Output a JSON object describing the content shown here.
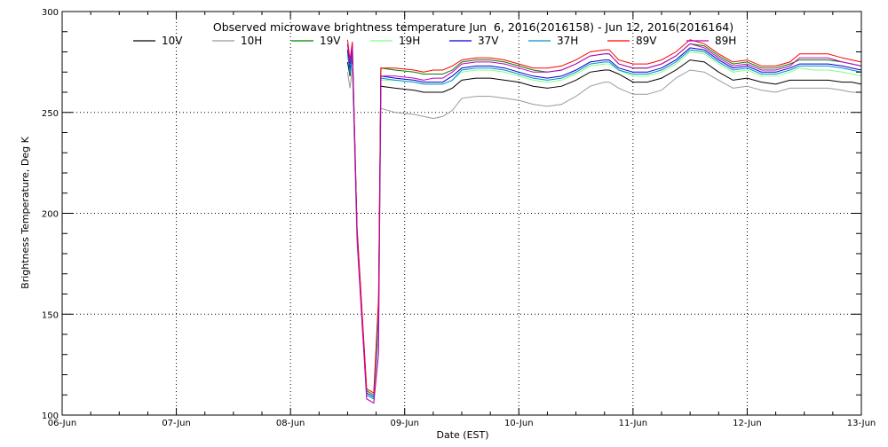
{
  "chart_data": {
    "type": "line",
    "title": "Observed microwave brightness temperature Jun  6, 2016(2016158) - Jun 12, 2016(2016164)",
    "xlabel": "Date (EST)",
    "ylabel": "Brightness Temperature, Deg K",
    "xlim": [
      "2016-06-06T00:00",
      "2016-06-13T00:00"
    ],
    "ylim": [
      100,
      300
    ],
    "x_ticks": [
      {
        "x": "2016-06-06",
        "label": "06-Jun"
      },
      {
        "x": "2016-06-07",
        "label": "07-Jun"
      },
      {
        "x": "2016-06-08",
        "label": "08-Jun"
      },
      {
        "x": "2016-06-09",
        "label": "09-Jun"
      },
      {
        "x": "2016-06-10",
        "label": "10-Jun"
      },
      {
        "x": "2016-06-11",
        "label": "11-Jun"
      },
      {
        "x": "2016-06-12",
        "label": "12-Jun"
      },
      {
        "x": "2016-06-13",
        "label": "13-Jun"
      }
    ],
    "y_ticks": [
      100,
      150,
      200,
      250,
      300
    ],
    "grid": true,
    "legend_position": "top",
    "series_x": [
      "2016-06-08T12:00",
      "2016-06-08T12:30",
      "2016-06-08T13:00",
      "2016-06-08T14:00",
      "2016-06-08T16:00",
      "2016-06-08T17:30",
      "2016-06-08T18:30",
      "2016-06-08T19:00",
      "2016-06-08T22:00",
      "2016-06-09T02:00",
      "2016-06-09T04:00",
      "2016-06-09T06:00",
      "2016-06-09T08:00",
      "2016-06-09T10:00",
      "2016-06-09T12:00",
      "2016-06-09T15:00",
      "2016-06-09T18:00",
      "2016-06-09T21:00",
      "2016-06-10T00:00",
      "2016-06-10T03:00",
      "2016-06-10T06:00",
      "2016-06-10T09:00",
      "2016-06-10T12:00",
      "2016-06-10T15:00",
      "2016-06-10T18:00",
      "2016-06-10T19:00",
      "2016-06-10T21:00",
      "2016-06-11T00:00",
      "2016-06-11T03:00",
      "2016-06-11T06:00",
      "2016-06-11T09:00",
      "2016-06-11T12:00",
      "2016-06-11T15:00",
      "2016-06-11T18:00",
      "2016-06-11T21:00",
      "2016-06-12T00:00",
      "2016-06-12T03:00",
      "2016-06-12T06:00",
      "2016-06-12T09:00",
      "2016-06-12T11:00",
      "2016-06-12T14:00",
      "2016-06-12T17:00",
      "2016-06-12T20:00",
      "2016-06-12T22:00",
      "2016-06-13T00:00"
    ],
    "series": [
      {
        "name": "10V",
        "color": "#000000",
        "values": [
          275,
          268,
          278,
          190,
          110,
          108,
          150,
          263,
          262,
          261,
          260,
          260,
          260,
          262,
          266,
          267,
          267,
          266,
          265,
          263,
          262,
          263,
          266,
          270,
          271,
          271,
          269,
          265,
          265,
          267,
          271,
          276,
          275,
          270,
          266,
          267,
          265,
          264,
          266,
          266,
          266,
          266,
          265,
          265,
          264
        ]
      },
      {
        "name": "10H",
        "color": "#999999",
        "values": [
          270,
          262,
          272,
          185,
          108,
          106,
          140,
          252,
          250,
          249,
          248,
          247,
          248,
          251,
          257,
          258,
          258,
          257,
          256,
          254,
          253,
          254,
          258,
          263,
          265,
          265,
          262,
          259,
          259,
          261,
          267,
          271,
          270,
          266,
          262,
          263,
          261,
          260,
          262,
          262,
          262,
          262,
          261,
          260,
          260
        ]
      },
      {
        "name": "19V",
        "color": "#008000",
        "values": [
          284,
          274,
          283,
          192,
          112,
          110,
          156,
          272,
          271,
          270,
          269,
          269,
          269,
          271,
          275,
          276,
          276,
          275,
          273,
          271,
          270,
          271,
          274,
          278,
          279,
          279,
          274,
          272,
          272,
          274,
          278,
          284,
          283,
          278,
          274,
          275,
          272,
          272,
          274,
          276,
          276,
          276,
          275,
          274,
          273
        ]
      },
      {
        "name": "19H",
        "color": "#80ff80",
        "values": [
          280,
          270,
          279,
          190,
          110,
          108,
          150,
          266,
          266,
          265,
          264,
          264,
          264,
          266,
          270,
          271,
          271,
          270,
          268,
          266,
          265,
          266,
          269,
          273,
          274,
          274,
          271,
          268,
          268,
          270,
          274,
          280,
          279,
          274,
          270,
          271,
          268,
          268,
          270,
          272,
          271,
          271,
          270,
          269,
          268
        ]
      },
      {
        "name": "37V",
        "color": "#0000cc",
        "values": [
          281,
          271,
          281,
          191,
          111,
          109,
          152,
          268,
          267,
          266,
          265,
          265,
          265,
          268,
          272,
          273,
          273,
          272,
          270,
          268,
          267,
          268,
          271,
          275,
          276,
          276,
          272,
          270,
          270,
          272,
          276,
          282,
          281,
          276,
          272,
          273,
          270,
          270,
          272,
          274,
          274,
          274,
          273,
          272,
          271
        ]
      },
      {
        "name": "37H",
        "color": "#0090d0",
        "values": [
          279,
          269,
          279,
          190,
          110,
          108,
          150,
          267,
          266,
          265,
          264,
          264,
          264,
          266,
          271,
          272,
          272,
          271,
          269,
          267,
          266,
          267,
          270,
          274,
          275,
          275,
          271,
          269,
          269,
          271,
          275,
          281,
          280,
          275,
          271,
          272,
          269,
          269,
          271,
          273,
          273,
          273,
          272,
          271,
          270
        ]
      },
      {
        "name": "89V",
        "color": "#ff0000",
        "values": [
          286,
          276,
          285,
          193,
          113,
          111,
          158,
          272,
          272,
          271,
          270,
          271,
          271,
          273,
          276,
          277,
          277,
          276,
          274,
          272,
          272,
          273,
          276,
          280,
          281,
          281,
          276,
          274,
          274,
          276,
          280,
          286,
          284,
          279,
          275,
          276,
          273,
          273,
          275,
          279,
          279,
          279,
          277,
          276,
          275
        ]
      },
      {
        "name": "89H",
        "color": "#c000c0",
        "values": [
          284,
          274,
          283,
          188,
          108,
          106,
          130,
          268,
          268,
          267,
          266,
          267,
          267,
          270,
          274,
          275,
          275,
          274,
          272,
          270,
          270,
          271,
          274,
          278,
          279,
          279,
          274,
          272,
          272,
          274,
          278,
          284,
          282,
          277,
          273,
          274,
          271,
          271,
          273,
          277,
          277,
          277,
          275,
          274,
          273
        ]
      }
    ]
  }
}
